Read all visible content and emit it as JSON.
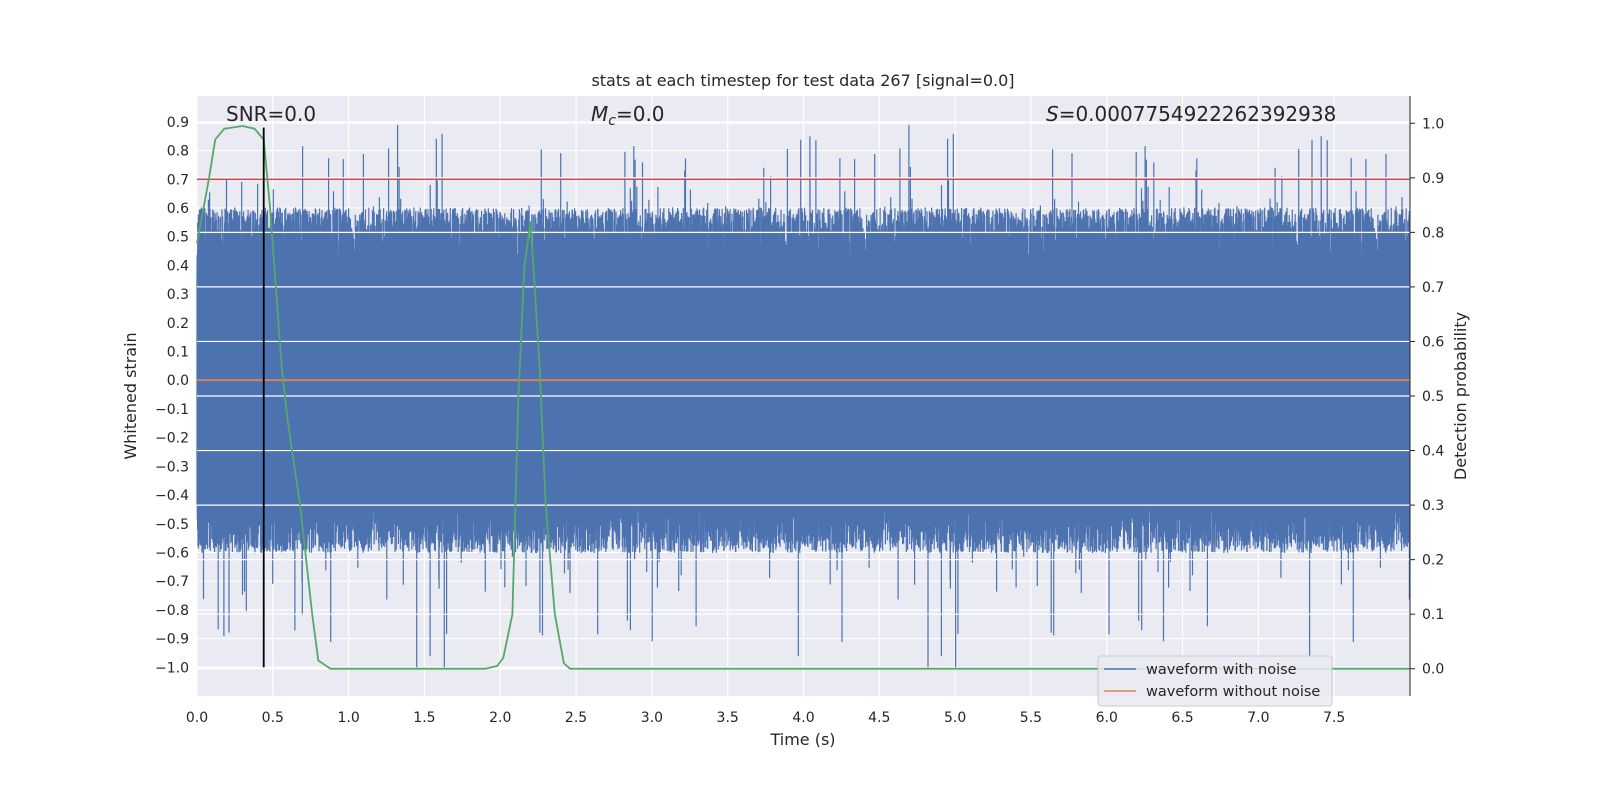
{
  "chart_data": {
    "type": "line",
    "title": "stats at each timestep for test data 267 [signal=0.0]",
    "xlabel": "Time (s)",
    "ylabel": "Whitened strain",
    "y2label": "Detection probability",
    "xlim": [
      0.0,
      8.0
    ],
    "ylim": [
      -1.1,
      0.99
    ],
    "y2lim": [
      -0.05,
      1.05
    ],
    "xticks": [
      "0.0",
      "0.5",
      "1.0",
      "1.5",
      "2.0",
      "2.5",
      "3.0",
      "3.5",
      "4.0",
      "4.5",
      "5.0",
      "5.5",
      "6.0",
      "6.5",
      "7.0",
      "7.5"
    ],
    "yticks": [
      "0.9",
      "0.8",
      "0.7",
      "0.6",
      "0.5",
      "0.4",
      "0.3",
      "0.2",
      "0.1",
      "0.0",
      "−0.1",
      "−0.2",
      "−0.3",
      "−0.4",
      "−0.5",
      "−0.6",
      "−0.7",
      "−0.8",
      "−0.9",
      "−1.0"
    ],
    "y2ticks": [
      "1.0",
      "0.9",
      "0.8",
      "0.7",
      "0.6",
      "0.5",
      "0.4",
      "0.3",
      "0.2",
      "0.1",
      "0.0"
    ],
    "annotations": {
      "snr": "SNR=0.0",
      "mc_symbol": "M",
      "mc_sub": "c",
      "mc_value": "=0.0",
      "s_symbol": "S",
      "s_value": "=0.0007754922262392938"
    },
    "threshold_y": 0.7,
    "marker_x": 0.44,
    "series": [
      {
        "name": "waveform with noise",
        "color": "#4c72b0",
        "kind": "noise",
        "sample_rate": 1024,
        "duration": 8.0,
        "envelope_mean": 0.47,
        "spread": 0.12,
        "spike_max": 0.89,
        "spike_min": -1.0
      },
      {
        "name": "waveform without noise",
        "color": "#dd8452",
        "kind": "constant",
        "value": 0.0
      },
      {
        "name": "detection probability",
        "color": "#55a868",
        "axis": "right",
        "x": [
          0.0,
          0.08,
          0.12,
          0.18,
          0.3,
          0.38,
          0.44,
          0.48,
          0.52,
          0.56,
          0.6,
          0.68,
          0.76,
          0.8,
          0.88,
          1.0,
          1.5,
          1.9,
          1.98,
          2.02,
          2.08,
          2.12,
          2.16,
          2.2,
          2.26,
          2.3,
          2.36,
          2.42,
          2.46,
          2.52,
          8.0
        ],
        "y": [
          0.78,
          0.9,
          0.97,
          0.99,
          0.995,
          0.99,
          0.97,
          0.85,
          0.7,
          0.55,
          0.45,
          0.3,
          0.1,
          0.015,
          0.0,
          0.0,
          0.0,
          0.0,
          0.005,
          0.02,
          0.1,
          0.5,
          0.74,
          0.82,
          0.55,
          0.3,
          0.1,
          0.01,
          0.0,
          0.0,
          0.0
        ]
      }
    ],
    "legend": [
      "waveform with noise",
      "waveform without noise"
    ],
    "legend_position": "lower-right"
  }
}
